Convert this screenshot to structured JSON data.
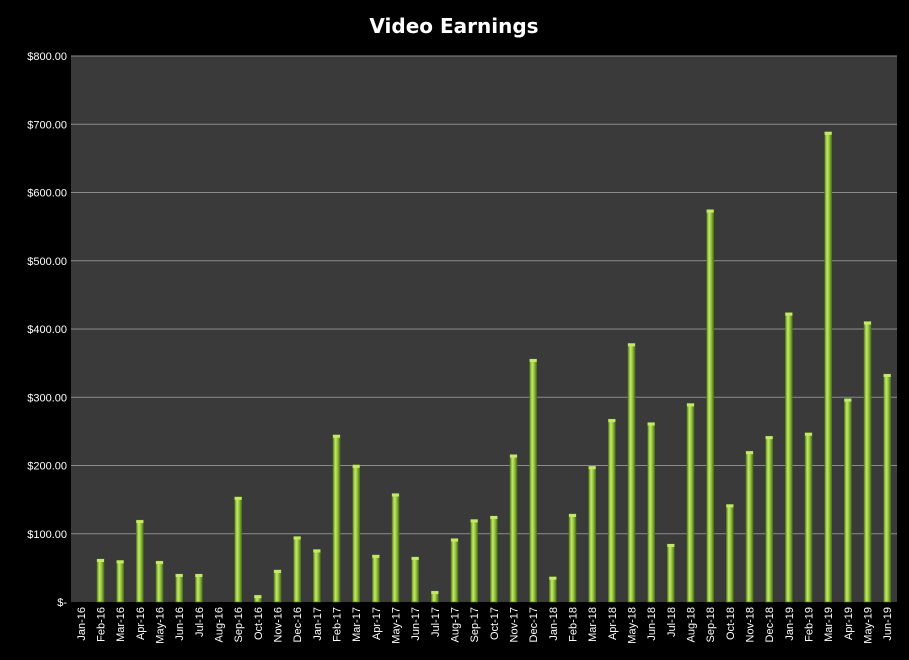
{
  "chart_data": {
    "type": "bar",
    "title": "Video Earnings",
    "xlabel": "",
    "ylabel": "",
    "ylim": [
      0,
      800
    ],
    "y_ticks": [
      0,
      100,
      200,
      300,
      400,
      500,
      600,
      700,
      800
    ],
    "y_tick_labels": [
      "$-",
      "$100.00",
      "$200.00",
      "$300.00",
      "$400.00",
      "$500.00",
      "$600.00",
      "$700.00",
      "$800.00"
    ],
    "grid": true,
    "legend": "none",
    "categories": [
      "Jan-16",
      "Feb-16",
      "Mar-16",
      "Apr-16",
      "May-16",
      "Jun-16",
      "Jul-16",
      "Aug-16",
      "Sep-16",
      "Oct-16",
      "Nov-16",
      "Dec-16",
      "Jan-17",
      "Feb-17",
      "Mar-17",
      "Apr-17",
      "May-17",
      "Jun-17",
      "Jul-17",
      "Aug-17",
      "Sep-17",
      "Oct-17",
      "Nov-17",
      "Dec-17",
      "Jan-18",
      "Feb-18",
      "Mar-18",
      "Apr-18",
      "May-18",
      "Jun-18",
      "Jul-18",
      "Aug-18",
      "Sep-18",
      "Oct-18",
      "Nov-18",
      "Dec-18",
      "Jan-19",
      "Feb-19",
      "Mar-19",
      "Apr-19",
      "May-19",
      "Jun-19"
    ],
    "values": [
      0,
      63,
      61,
      120,
      60,
      41,
      41,
      0,
      154,
      10,
      47,
      96,
      77,
      245,
      201,
      69,
      159,
      66,
      16,
      93,
      121,
      126,
      216,
      356,
      37,
      129,
      199,
      268,
      379,
      263,
      85,
      291,
      575,
      143,
      221,
      243,
      424,
      248,
      689,
      298,
      411,
      334
    ]
  },
  "colors": {
    "background": "#000000",
    "plot_area": "#3a3a3a",
    "gridline": "#8c8c8c",
    "bar_light": "#c6e86a",
    "bar_mid": "#8fc03a",
    "bar_dark": "#4d7516",
    "text": "#ffffff"
  }
}
